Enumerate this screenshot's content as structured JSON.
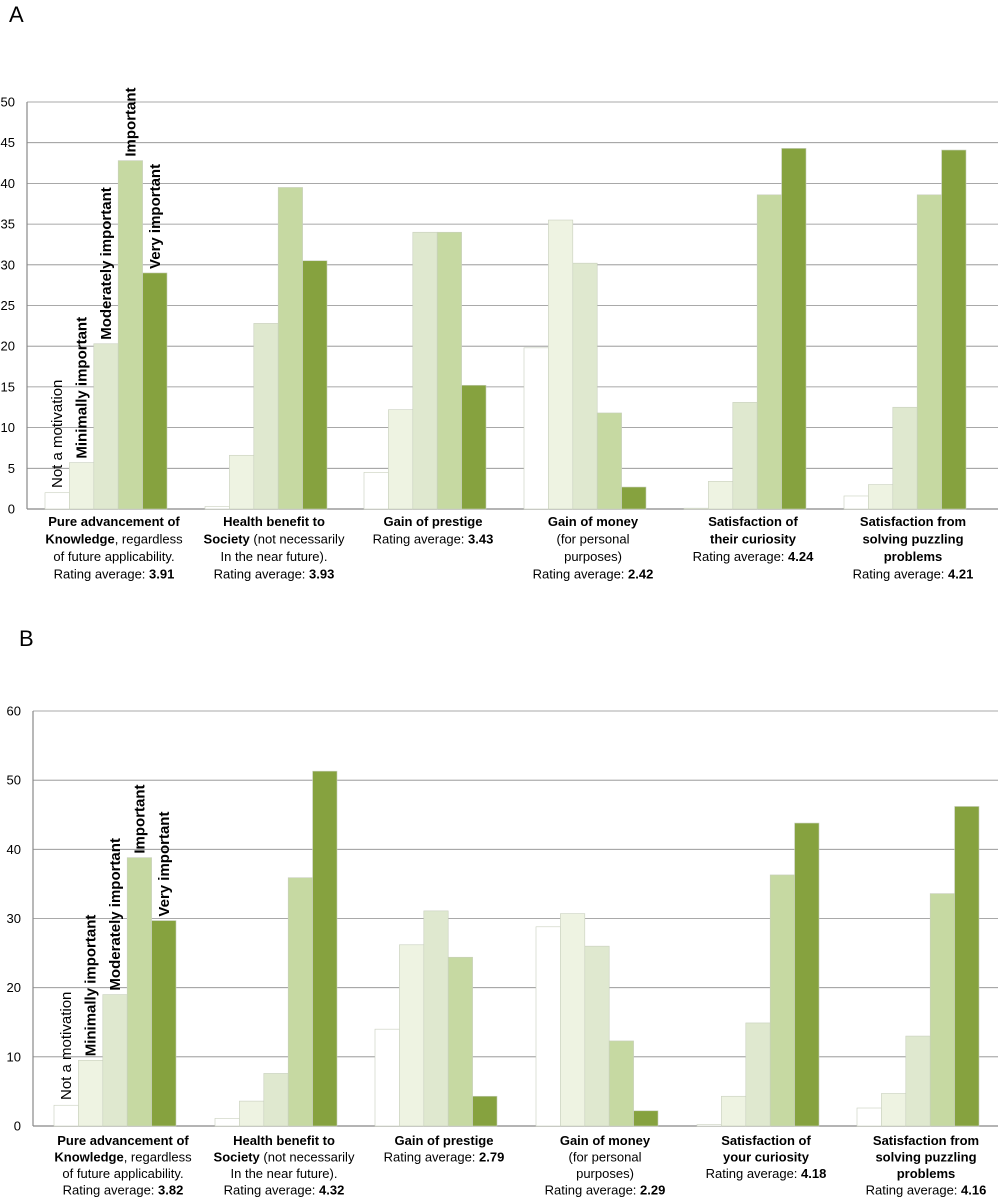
{
  "chart_data": [
    {
      "panel": "A",
      "type": "bar",
      "ylim": [
        0,
        50
      ],
      "yticks": [
        0,
        5,
        10,
        15,
        20,
        25,
        30,
        35,
        40,
        45,
        50
      ],
      "grid": true,
      "series_labels": [
        "Not a motivation",
        "Minimally important",
        "Moderately important",
        "Important",
        "Very important"
      ],
      "colors": [
        "#ffffff",
        "#eef3e2",
        "#dfe8cf",
        "#c6d9a2",
        "#86a23f"
      ],
      "groups": [
        {
          "label_lines": [
            [
              {
                "t": "Pure advancement of",
                "b": true
              }
            ],
            [
              {
                "t": "Knowledge",
                "b": true
              },
              {
                "t": ", regardless",
                "b": false
              }
            ],
            [
              {
                "t": "of future applicability.",
                "b": false
              }
            ],
            [
              {
                "t": "Rating average: ",
                "b": false
              },
              {
                "t": "3.91",
                "b": true
              }
            ]
          ],
          "values": [
            2,
            5.7,
            20.3,
            42.8,
            29
          ]
        },
        {
          "label_lines": [
            [
              {
                "t": "Health benefit to",
                "b": true
              }
            ],
            [
              {
                "t": "Society",
                "b": true
              },
              {
                "t": " (not necessarily",
                "b": false
              }
            ],
            [
              {
                "t": "In the near future).",
                "b": false
              }
            ],
            [
              {
                "t": "Rating average: ",
                "b": false
              },
              {
                "t": "3.93",
                "b": true
              }
            ]
          ],
          "values": [
            0.3,
            6.6,
            22.8,
            39.5,
            30.5
          ]
        },
        {
          "label_lines": [
            [
              {
                "t": "Gain of prestige",
                "b": true
              }
            ],
            [
              {
                "t": "Rating average: ",
                "b": false
              },
              {
                "t": "3.43",
                "b": true
              }
            ]
          ],
          "values": [
            4.5,
            12.2,
            34,
            34,
            15.2
          ]
        },
        {
          "label_lines": [
            [
              {
                "t": "Gain of money",
                "b": true
              }
            ],
            [
              {
                "t": "(for personal",
                "b": false
              }
            ],
            [
              {
                "t": "purposes)",
                "b": false
              }
            ],
            [
              {
                "t": "Rating average: ",
                "b": false
              },
              {
                "t": "2.42",
                "b": true
              }
            ]
          ],
          "values": [
            19.8,
            35.5,
            30.2,
            11.8,
            2.7
          ]
        },
        {
          "label_lines": [
            [
              {
                "t": "Satisfaction of",
                "b": true
              }
            ],
            [
              {
                "t": "their curiosity",
                "b": true
              }
            ],
            [
              {
                "t": "Rating average: ",
                "b": false
              },
              {
                "t": "4.24",
                "b": true
              }
            ]
          ],
          "values": [
            0.1,
            3.4,
            13.1,
            38.6,
            44.3
          ]
        },
        {
          "label_lines": [
            [
              {
                "t": "Satisfaction from",
                "b": true
              }
            ],
            [
              {
                "t": "solving puzzling",
                "b": true
              }
            ],
            [
              {
                "t": "problems",
                "b": true
              }
            ],
            [
              {
                "t": "Rating average: ",
                "b": false
              },
              {
                "t": "4.21",
                "b": true
              }
            ]
          ],
          "values": [
            1.6,
            3,
            12.5,
            38.6,
            44.1
          ]
        }
      ]
    },
    {
      "panel": "B",
      "type": "bar",
      "ylim": [
        0,
        60
      ],
      "yticks": [
        0,
        10,
        20,
        30,
        40,
        50,
        60
      ],
      "grid": true,
      "series_labels": [
        "Not a motivation",
        "Minimally important",
        "Moderately important",
        "Important",
        "Very important"
      ],
      "colors": [
        "#ffffff",
        "#eef3e2",
        "#dfe8cf",
        "#c6d9a2",
        "#86a23f"
      ],
      "groups": [
        {
          "label_lines": [
            [
              {
                "t": "Pure advancement of",
                "b": true
              }
            ],
            [
              {
                "t": "Knowledge",
                "b": true
              },
              {
                "t": ", regardless",
                "b": false
              }
            ],
            [
              {
                "t": "of future applicability.",
                "b": false
              }
            ],
            [
              {
                "t": "Rating average: ",
                "b": false
              },
              {
                "t": "3.82",
                "b": true
              }
            ]
          ],
          "values": [
            3,
            9.5,
            19,
            38.8,
            29.7
          ]
        },
        {
          "label_lines": [
            [
              {
                "t": "Health benefit to",
                "b": true
              }
            ],
            [
              {
                "t": "Society",
                "b": true
              },
              {
                "t": " (not necessarily",
                "b": false
              }
            ],
            [
              {
                "t": "In the near future).",
                "b": false
              }
            ],
            [
              {
                "t": "Rating average: ",
                "b": false
              },
              {
                "t": "4.32",
                "b": true
              }
            ]
          ],
          "values": [
            1.1,
            3.6,
            7.6,
            35.9,
            51.3
          ]
        },
        {
          "label_lines": [
            [
              {
                "t": "Gain of prestige",
                "b": true
              }
            ],
            [
              {
                "t": "Rating average: ",
                "b": false
              },
              {
                "t": "2.79",
                "b": true
              }
            ]
          ],
          "values": [
            14,
            26.2,
            31.1,
            24.4,
            4.3
          ]
        },
        {
          "label_lines": [
            [
              {
                "t": "Gain of money",
                "b": true
              }
            ],
            [
              {
                "t": "(for personal",
                "b": false
              }
            ],
            [
              {
                "t": "purposes)",
                "b": false
              }
            ],
            [
              {
                "t": "Rating average: ",
                "b": false
              },
              {
                "t": "2.29",
                "b": true
              }
            ]
          ],
          "values": [
            28.8,
            30.7,
            26,
            12.3,
            2.2
          ]
        },
        {
          "label_lines": [
            [
              {
                "t": "Satisfaction of",
                "b": true
              }
            ],
            [
              {
                "t": "your curiosity",
                "b": true
              }
            ],
            [
              {
                "t": "Rating average: ",
                "b": false
              },
              {
                "t": "4.18",
                "b": true
              }
            ]
          ],
          "values": [
            0.2,
            4.3,
            14.9,
            36.3,
            43.8
          ]
        },
        {
          "label_lines": [
            [
              {
                "t": "Satisfaction from",
                "b": true
              }
            ],
            [
              {
                "t": "solving puzzling",
                "b": true
              }
            ],
            [
              {
                "t": "problems",
                "b": true
              }
            ],
            [
              {
                "t": "Rating average: ",
                "b": false
              },
              {
                "t": "4.16",
                "b": true
              }
            ]
          ],
          "values": [
            2.6,
            4.7,
            13,
            33.6,
            46.2
          ]
        }
      ]
    }
  ]
}
